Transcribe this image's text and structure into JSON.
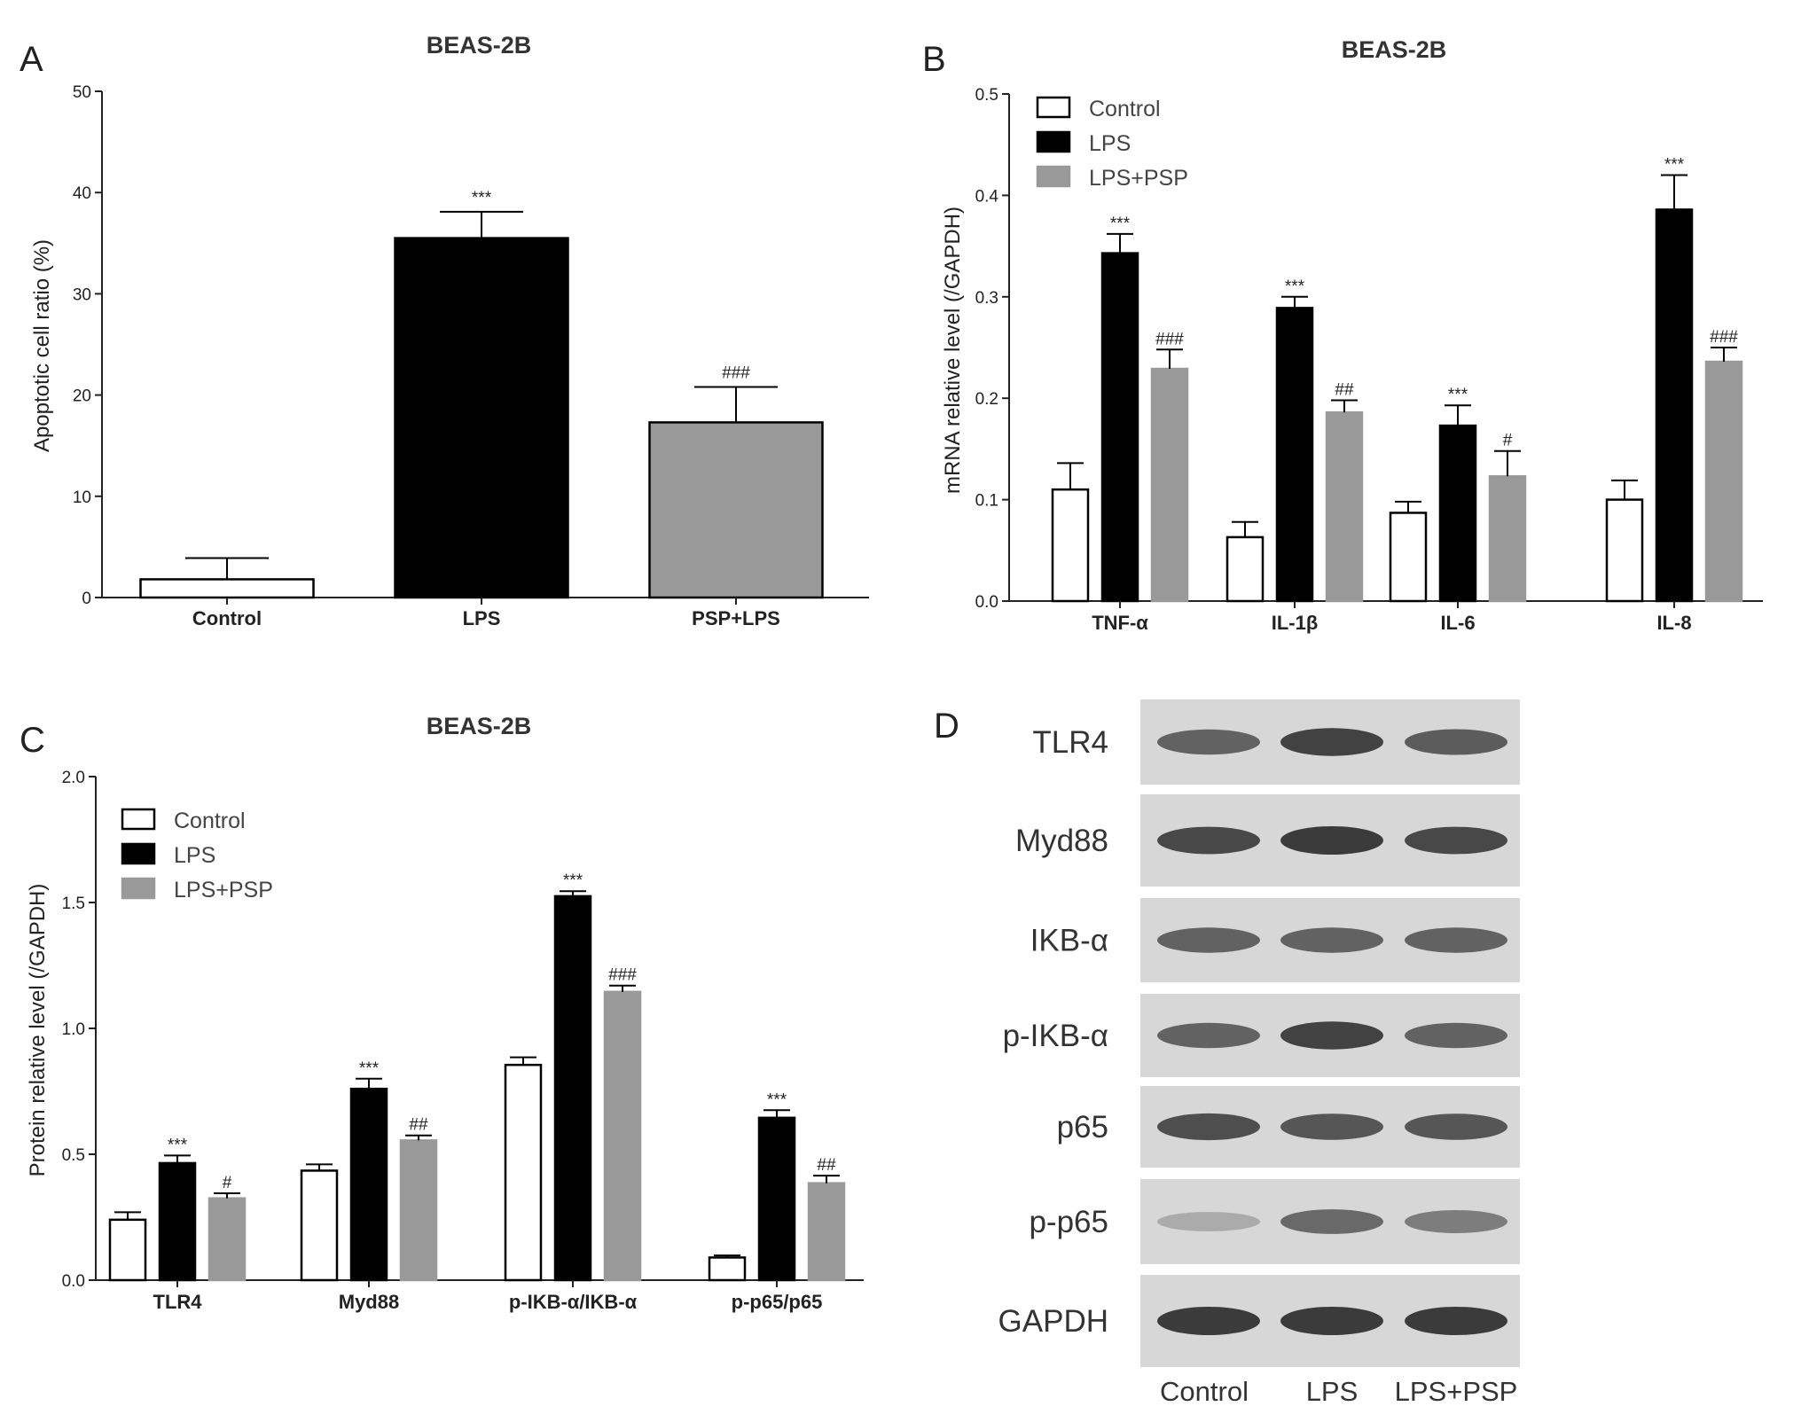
{
  "colors": {
    "control": "#ffffff",
    "lps": "#000000",
    "lps_psp": "#999999",
    "axis": "#222222",
    "blot_bg": "#d7d7d7",
    "band": "#333333"
  },
  "panels": {
    "a": {
      "label": "A",
      "title": "BEAS-2B"
    },
    "b": {
      "label": "B",
      "title": "BEAS-2B"
    },
    "c": {
      "label": "C",
      "title": "BEAS-2B"
    },
    "d": {
      "label": "D"
    }
  },
  "chart_data": [
    {
      "id": "a",
      "type": "bar",
      "title": "BEAS-2B",
      "xlabel": "",
      "ylabel": "Apoptotic cell ratio (%)",
      "ylim": [
        0,
        50
      ],
      "yticks": [
        0,
        10,
        20,
        30,
        40,
        50
      ],
      "categories": [
        "Control",
        "LPS",
        "PSP+LPS"
      ],
      "values": [
        1.8,
        35.5,
        17.3
      ],
      "errors": [
        2.1,
        2.6,
        3.5
      ],
      "bar_colors": [
        "#ffffff",
        "#000000",
        "#999999"
      ],
      "annotations": [
        "",
        "***",
        "###"
      ],
      "grid": false
    },
    {
      "id": "b",
      "type": "bar",
      "title": "BEAS-2B",
      "xlabel": "",
      "ylabel": "mRNA relative level (/GAPDH)",
      "ylim": [
        0,
        0.5
      ],
      "yticks": [
        "0.0",
        "0.1",
        "0.2",
        "0.3",
        "0.4",
        "0.5"
      ],
      "categories": [
        "TNF-α",
        "IL-1β",
        "IL-6",
        "IL-8"
      ],
      "series": [
        {
          "name": "Control",
          "values": [
            0.11,
            0.063,
            0.087,
            0.1
          ],
          "errors": [
            0.026,
            0.015,
            0.011,
            0.019
          ],
          "annotations": [
            "",
            "",
            "",
            ""
          ]
        },
        {
          "name": "LPS",
          "values": [
            0.343,
            0.289,
            0.173,
            0.386
          ],
          "errors": [
            0.019,
            0.011,
            0.02,
            0.034
          ],
          "annotations": [
            "***",
            "***",
            "***",
            "***"
          ]
        },
        {
          "name": "LPS+PSP",
          "values": [
            0.229,
            0.186,
            0.123,
            0.236
          ],
          "errors": [
            0.019,
            0.012,
            0.025,
            0.014
          ],
          "annotations": [
            "###",
            "##",
            "#",
            "###"
          ]
        }
      ],
      "legend": "top-left",
      "grid": false
    },
    {
      "id": "c",
      "type": "bar",
      "title": "BEAS-2B",
      "xlabel": "",
      "ylabel": "Protein relative level (/GAPDH)",
      "ylim": [
        0,
        2.0
      ],
      "yticks": [
        "0.0",
        "0.5",
        "1.0",
        "1.5",
        "2.0"
      ],
      "categories": [
        "TLR4",
        "Myd88",
        "p-IKB-α/IKB-α",
        "p-p65/p65"
      ],
      "series": [
        {
          "name": "Control",
          "values": [
            0.24,
            0.435,
            0.855,
            0.09
          ],
          "errors": [
            0.03,
            0.025,
            0.03,
            0.008
          ],
          "annotations": [
            "",
            "",
            "",
            ""
          ]
        },
        {
          "name": "LPS",
          "values": [
            0.465,
            0.76,
            1.525,
            0.645
          ],
          "errors": [
            0.03,
            0.04,
            0.02,
            0.03
          ],
          "annotations": [
            "***",
            "***",
            "***",
            "***"
          ]
        },
        {
          "name": "LPS+PSP",
          "values": [
            0.325,
            0.555,
            1.145,
            0.385
          ],
          "errors": [
            0.02,
            0.02,
            0.025,
            0.03
          ],
          "annotations": [
            "#",
            "##",
            "###",
            "##"
          ]
        }
      ],
      "legend": "top-left",
      "grid": false
    }
  ],
  "blot": {
    "rows": [
      {
        "label": "TLR4",
        "intensity": [
          0.7,
          0.95,
          0.75
        ]
      },
      {
        "label": "Myd88",
        "intensity": [
          0.9,
          1.0,
          0.9
        ]
      },
      {
        "label": "IKB-α",
        "intensity": [
          0.7,
          0.7,
          0.7
        ]
      },
      {
        "label": "p-IKB-α",
        "intensity": [
          0.7,
          0.95,
          0.7
        ]
      },
      {
        "label": "p65",
        "intensity": [
          0.85,
          0.8,
          0.8
        ]
      },
      {
        "label": "p-p65",
        "intensity": [
          0.15,
          0.65,
          0.5
        ]
      },
      {
        "label": "GAPDH",
        "intensity": [
          1.0,
          1.0,
          1.0
        ]
      }
    ],
    "lanes": [
      "Control",
      "LPS",
      "LPS+PSP"
    ]
  }
}
